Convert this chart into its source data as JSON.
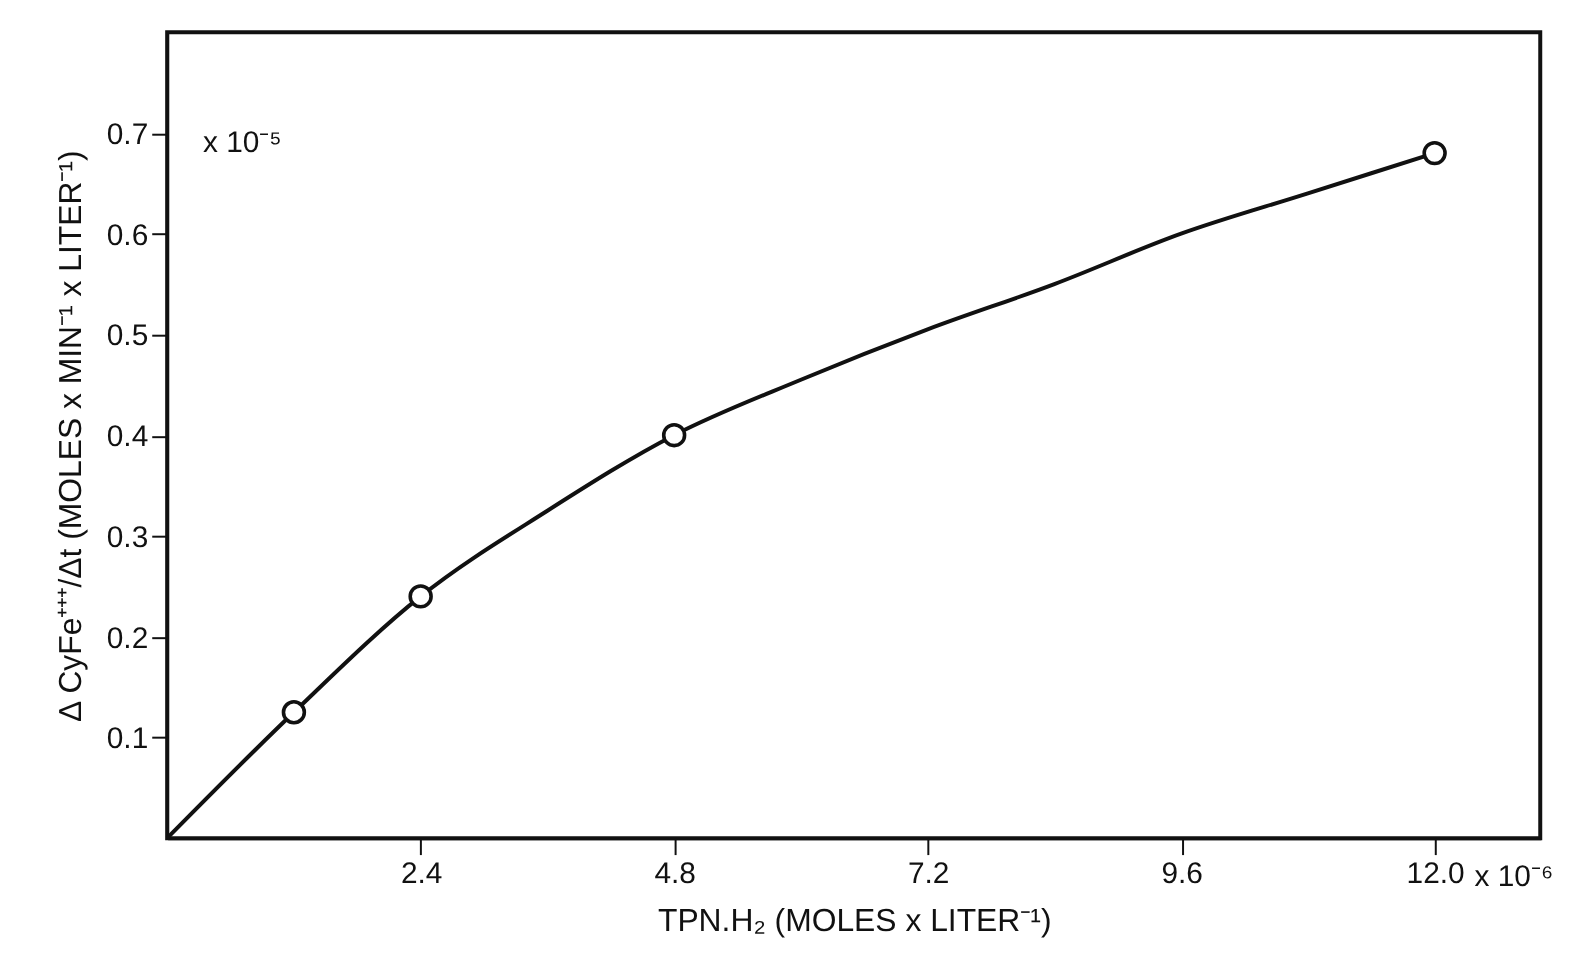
{
  "chart_data": {
    "type": "line",
    "xlabel": "TPN.H₂  (MOLES x LITER⁻¹)",
    "ylabel": "Δ CyFe⁺⁺⁺/Δt  (MOLES x MIN⁻¹ x LITER⁻¹)",
    "annotations": [
      "x 10⁻⁵",
      "x 10⁻⁶"
    ],
    "series": [
      {
        "color": "#111111",
        "marker": "none",
        "x": [
          0,
          1.2,
          2.4,
          3.6,
          4.8,
          6.0,
          7.2,
          8.4,
          9.6,
          10.8,
          12.0
        ],
        "values": [
          0,
          0.125,
          0.24,
          0.325,
          0.4,
          0.455,
          0.505,
          0.55,
          0.6,
          0.64,
          0.68
        ]
      },
      {
        "type": "scatter",
        "color": "#111111",
        "marker": "circle",
        "x": [
          1.2,
          2.4,
          4.8,
          12.0
        ],
        "values": [
          0.125,
          0.24,
          0.4,
          0.68
        ]
      }
    ],
    "xlim": [
      0,
      13
    ],
    "ylim": [
      0,
      0.8
    ],
    "xticks": [
      2.4,
      4.8,
      7.2,
      9.6,
      {
        "value": 12,
        "label": "12.0"
      }
    ],
    "yticks": [
      0.1,
      0.2,
      0.3,
      0.4,
      0.5,
      0.6,
      0.7
    ],
    "grid": false
  }
}
